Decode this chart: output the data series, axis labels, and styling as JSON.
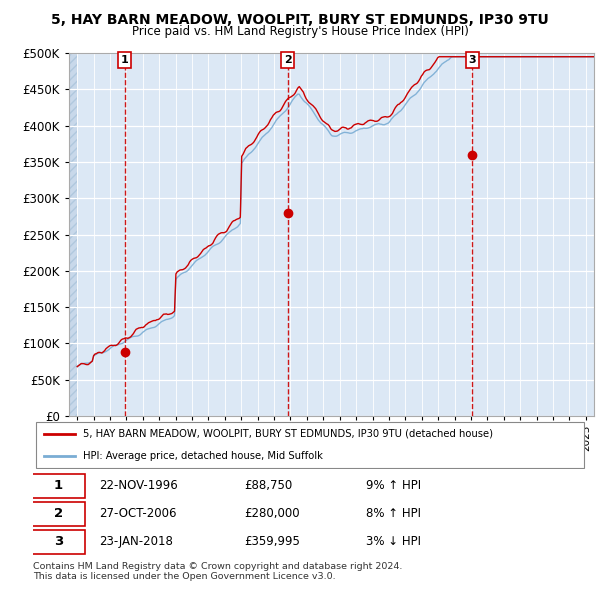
{
  "title1": "5, HAY BARN MEADOW, WOOLPIT, BURY ST EDMUNDS, IP30 9TU",
  "title2": "Price paid vs. HM Land Registry's House Price Index (HPI)",
  "legend_label_red": "5, HAY BARN MEADOW, WOOLPIT, BURY ST EDMUNDS, IP30 9TU (detached house)",
  "legend_label_blue": "HPI: Average price, detached house, Mid Suffolk",
  "transactions": [
    {
      "num": 1,
      "date": "22-NOV-1996",
      "price": "£88,750",
      "hpi": "9% ↑ HPI",
      "x": 1996.9
    },
    {
      "num": 2,
      "date": "27-OCT-2006",
      "price": "£280,000",
      "hpi": "8% ↑ HPI",
      "x": 2006.83
    },
    {
      "num": 3,
      "date": "23-JAN-2018",
      "price": "£359,995",
      "hpi": "3% ↓ HPI",
      "x": 2018.07
    }
  ],
  "sale_prices": [
    88750,
    280000,
    359995
  ],
  "sale_years": [
    1996.9,
    2006.83,
    2018.07
  ],
  "copyright": "Contains HM Land Registry data © Crown copyright and database right 2024.\nThis data is licensed under the Open Government Licence v3.0.",
  "ylim": [
    0,
    500000
  ],
  "yticks": [
    0,
    50000,
    100000,
    150000,
    200000,
    250000,
    300000,
    350000,
    400000,
    450000,
    500000
  ],
  "xmin": 1993.5,
  "xmax": 2025.5,
  "bg_color": "#dce8f5",
  "grid_color": "#ffffff",
  "red_color": "#cc0000",
  "blue_color": "#7aadd4",
  "hatch_color": "#c8d8ea"
}
